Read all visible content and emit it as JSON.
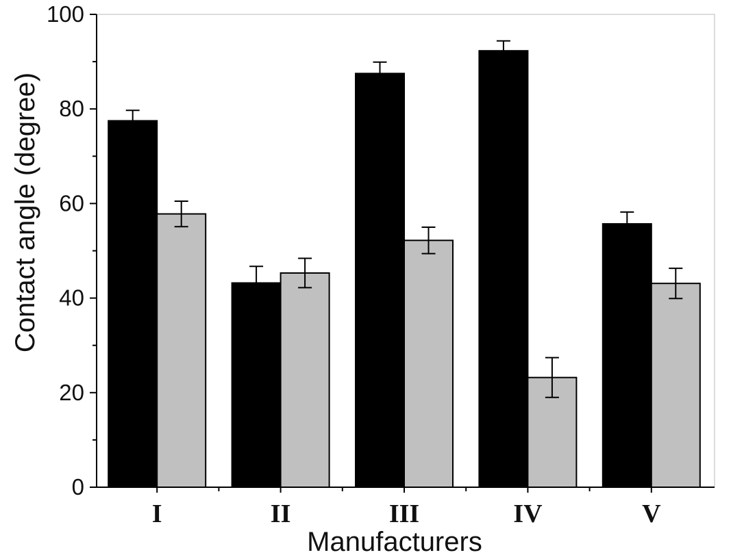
{
  "chart_data": {
    "type": "bar",
    "categories": [
      "I",
      "II",
      "III",
      "IV",
      "V"
    ],
    "series": [
      {
        "values": [
          77.5,
          43.2,
          87.5,
          92.3,
          55.7
        ],
        "errors": [
          2.2,
          3.5,
          2.4,
          2.1,
          2.5
        ],
        "color": "#000000"
      },
      {
        "values": [
          57.8,
          45.3,
          52.2,
          23.2,
          43.1
        ],
        "errors": [
          2.7,
          3.1,
          2.8,
          4.2,
          3.2
        ],
        "color": "#c0c0c0"
      }
    ],
    "xlabel": "Manufacturers",
    "ylabel": "Contact angle (degree)",
    "ylim": [
      0,
      100
    ],
    "yticks": [
      0,
      20,
      40,
      60,
      80,
      100
    ],
    "grid": false,
    "legend": "none"
  }
}
